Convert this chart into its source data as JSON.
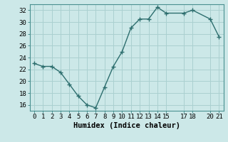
{
  "x": [
    0,
    1,
    2,
    3,
    4,
    5,
    6,
    7,
    8,
    9,
    10,
    11,
    12,
    13,
    14,
    15,
    17,
    18,
    20,
    21
  ],
  "y": [
    23.0,
    22.5,
    22.5,
    21.5,
    19.5,
    17.5,
    16.0,
    15.5,
    19.0,
    22.5,
    25.0,
    29.0,
    30.5,
    30.5,
    32.5,
    31.5,
    31.5,
    32.0,
    30.5,
    27.5
  ],
  "line_color": "#2d6e6e",
  "marker": "+",
  "bg_color": "#cce8e8",
  "grid_color": "#aad0d0",
  "xlabel": "Humidex (Indice chaleur)",
  "xlim": [
    -0.5,
    21.5
  ],
  "ylim": [
    15,
    33
  ],
  "yticks": [
    16,
    18,
    20,
    22,
    24,
    26,
    28,
    30,
    32
  ],
  "xticks": [
    0,
    1,
    2,
    3,
    4,
    5,
    6,
    7,
    8,
    9,
    10,
    11,
    12,
    13,
    14,
    15,
    17,
    18,
    20,
    21
  ],
  "tick_label_fontsize": 6.5,
  "xlabel_fontsize": 7.5,
  "linewidth": 1.0,
  "markersize": 4
}
